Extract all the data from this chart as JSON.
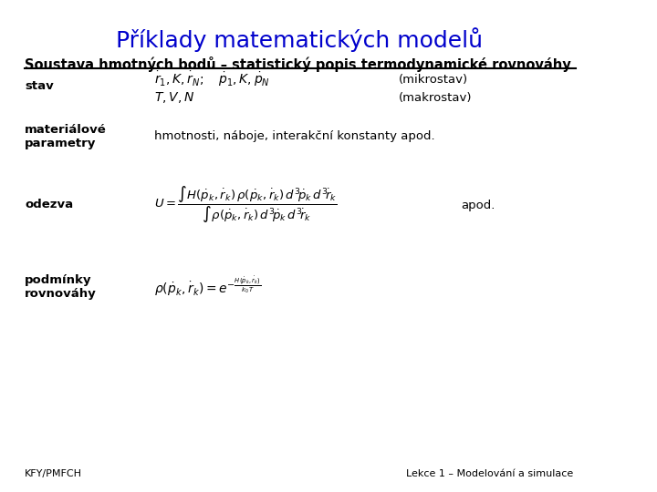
{
  "title": "Příklady matematických modelů",
  "subtitle": "Soustava hmotných bodů – statistický popis termodynamické rovnováhy",
  "title_color": "#0000cc",
  "subtitle_color": "#000000",
  "background_color": "#ffffff",
  "footer_left": "KFY/PMFCH",
  "footer_right": "Lekce 1 – Modelování a simulace",
  "label_stav": "stav",
  "label_materialne": "materiálové\nparametry",
  "label_odezva": "odezva",
  "label_podminky": "podmínky\nrovnováhy",
  "mikrostav_text": "(mikrostav)",
  "makrostav_text": "(makrostav)",
  "material_desc": "hmotnosti, náboje, interakční konstanty apod.",
  "apod_text": "apod."
}
